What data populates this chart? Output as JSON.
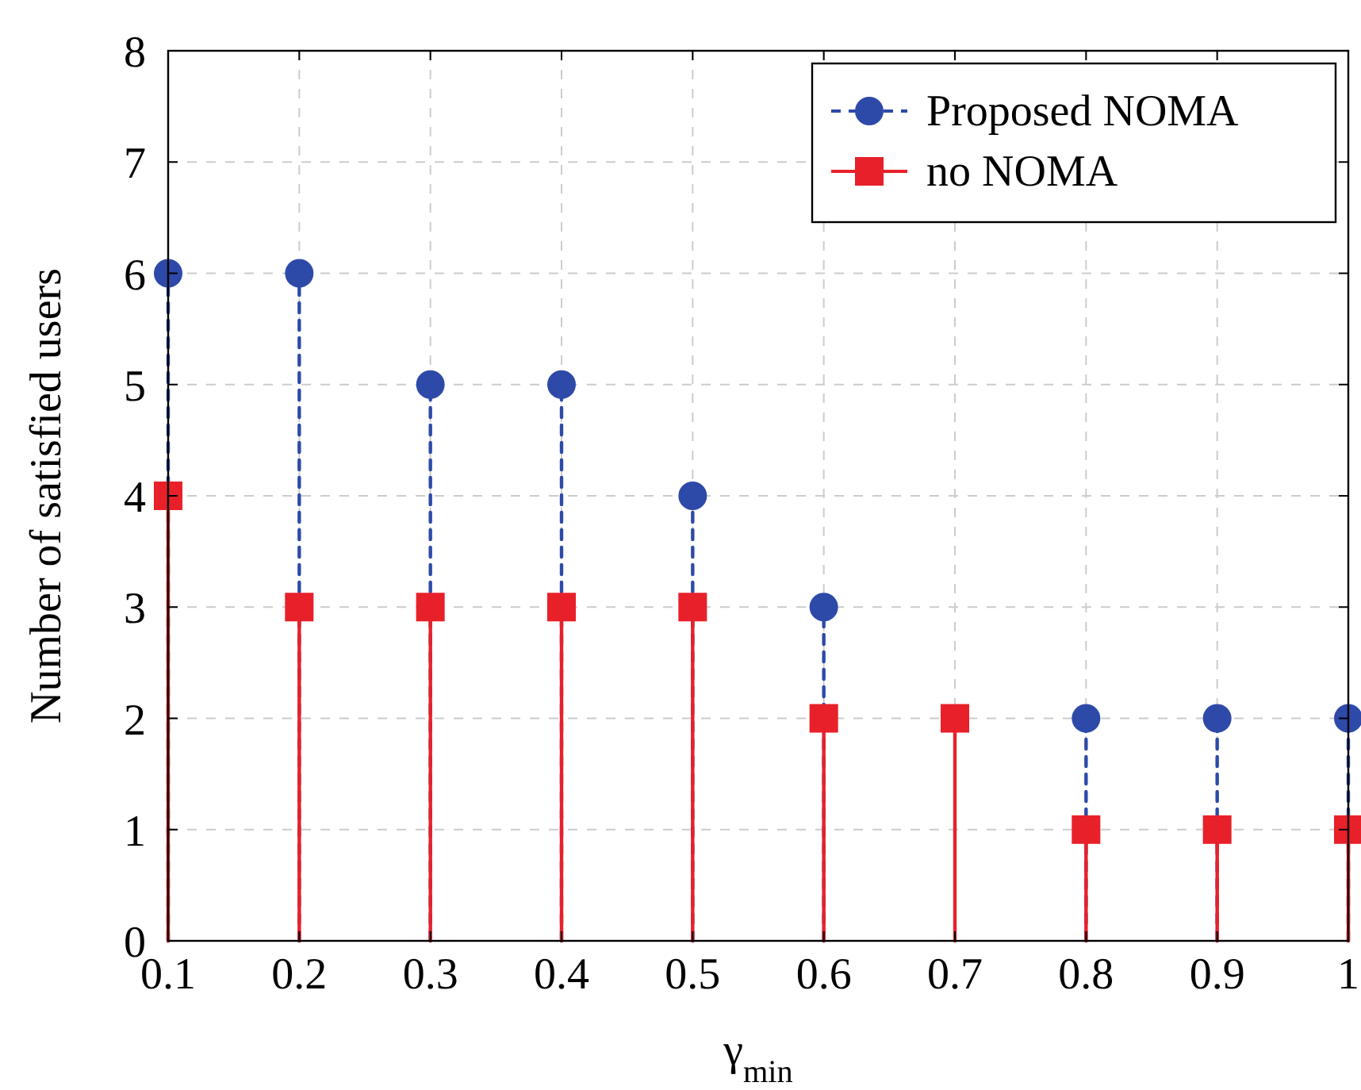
{
  "chart_data": {
    "type": "lollipop",
    "xlabel": "γ$_{min}$",
    "ylabel": "Number of satisfied users",
    "x": [
      0.1,
      0.2,
      0.3,
      0.4,
      0.5,
      0.6,
      0.7,
      0.8,
      0.9,
      1
    ],
    "series": [
      {
        "name": "Proposed NOMA",
        "color": "#2e4aa8",
        "values": [
          6,
          6,
          5,
          5,
          4,
          3,
          null,
          2,
          2,
          2
        ],
        "marker": "circle",
        "line_style": "dashed"
      },
      {
        "name": "no NOMA",
        "color": "#e8202a",
        "values": [
          4,
          3,
          3,
          3,
          3,
          2,
          2,
          1,
          1,
          1
        ],
        "marker": "square",
        "line_style": "solid"
      }
    ],
    "xlim": [
      0.1,
      1
    ],
    "xticks": [
      0.1,
      0.2,
      0.3,
      0.4,
      0.5,
      0.6,
      0.7,
      0.8,
      0.9,
      1
    ],
    "ylim": [
      0,
      8
    ],
    "yticks": [
      0,
      1,
      2,
      3,
      4,
      5,
      6,
      7,
      8
    ],
    "grid": true,
    "legend": "top right"
  }
}
